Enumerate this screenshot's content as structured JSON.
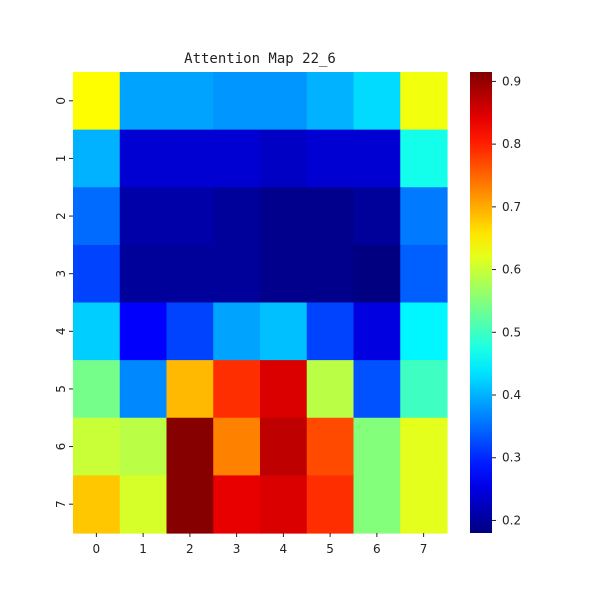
{
  "chart_data": {
    "type": "heatmap",
    "title": "Attention Map 22_6",
    "xlabel": "",
    "ylabel": "",
    "x_ticks": [
      "0",
      "1",
      "2",
      "3",
      "4",
      "5",
      "6",
      "7"
    ],
    "y_ticks": [
      "0",
      "1",
      "2",
      "3",
      "4",
      "5",
      "6",
      "7"
    ],
    "colormap": "jet",
    "vmin": 0.18,
    "vmax": 0.915,
    "colorbar_ticks": [
      0.2,
      0.3,
      0.4,
      0.5,
      0.6,
      0.7,
      0.8,
      0.9
    ],
    "colorbar_tick_labels": [
      "0.2",
      "0.3",
      "0.4",
      "0.5",
      "0.6",
      "0.7",
      "0.8",
      "0.9"
    ],
    "values": [
      [
        0.64,
        0.39,
        0.39,
        0.38,
        0.38,
        0.4,
        0.43,
        0.63
      ],
      [
        0.4,
        0.24,
        0.24,
        0.24,
        0.23,
        0.24,
        0.24,
        0.47
      ],
      [
        0.35,
        0.21,
        0.21,
        0.2,
        0.19,
        0.19,
        0.2,
        0.36
      ],
      [
        0.32,
        0.2,
        0.2,
        0.2,
        0.19,
        0.19,
        0.18,
        0.34
      ],
      [
        0.42,
        0.27,
        0.32,
        0.39,
        0.41,
        0.32,
        0.25,
        0.45
      ],
      [
        0.54,
        0.37,
        0.69,
        0.79,
        0.85,
        0.59,
        0.33,
        0.5
      ],
      [
        0.6,
        0.59,
        0.91,
        0.73,
        0.87,
        0.77,
        0.55,
        0.62
      ],
      [
        0.68,
        0.61,
        0.91,
        0.84,
        0.85,
        0.79,
        0.55,
        0.62
      ]
    ]
  }
}
